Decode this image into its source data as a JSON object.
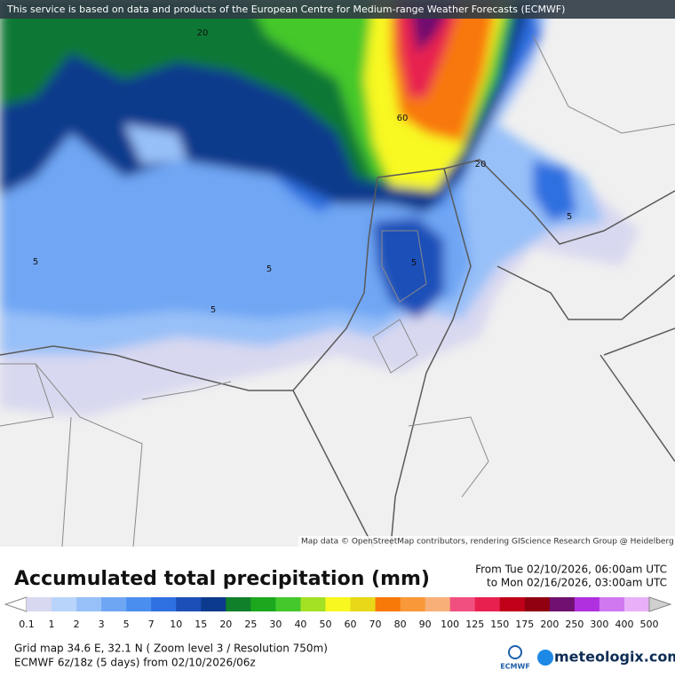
{
  "banner": "This service is based on data and products of the European Centre for Medium-range Weather Forecasts (ECMWF)",
  "attribution": "Map data © OpenStreetMap contributors, rendering GIScience Research Group @ Heidelberg University",
  "map": {
    "contour_labels": [
      "20",
      "60",
      "20",
      "5",
      "5",
      "5",
      "5",
      "5"
    ]
  },
  "title": "Accumulated total precipitation (mm)",
  "period": {
    "from": "From Tue 02/10/2026, 06:00am UTC",
    "to": "to Mon 02/16/2026, 03:00am UTC"
  },
  "legend": {
    "labels": [
      "0.1",
      "1",
      "2",
      "3",
      "5",
      "7",
      "10",
      "15",
      "20",
      "25",
      "30",
      "40",
      "50",
      "60",
      "70",
      "80",
      "90",
      "100",
      "125",
      "150",
      "175",
      "200",
      "250",
      "300",
      "400",
      "500"
    ],
    "colors": [
      "#ffffff",
      "#d8d8f0",
      "#b8d4fa",
      "#98c0f8",
      "#6fa6f4",
      "#4a8ef0",
      "#2e70e0",
      "#1c50b8",
      "#0c3a8c",
      "#10802a",
      "#1ca81e",
      "#44c82c",
      "#a4e024",
      "#f8f820",
      "#e8d818",
      "#f87808",
      "#f89838",
      "#f8b078",
      "#f05080",
      "#e82050",
      "#c00018",
      "#900010",
      "#701070",
      "#b030e0",
      "#d078f0",
      "#e8b0f8",
      "#f0e0fc"
    ],
    "end_color": "#d0d0d0"
  },
  "footer": {
    "grid": "Grid map 34.6 E, 32.1 N ( Zoom level 3 / Resolution 750m)",
    "model": "ECMWF 6z/18z (5 days) from 02/10/2026/06z",
    "ecmwf": "ECMWF",
    "brand": "meteologix.com"
  }
}
